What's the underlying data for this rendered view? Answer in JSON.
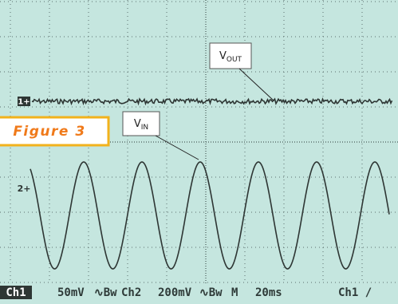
{
  "figure_label": "Figure 3",
  "annotations": {
    "v_out": {
      "main": "V",
      "sub": "OUT"
    },
    "v_in": {
      "main": "V",
      "sub": "IN"
    }
  },
  "markers": {
    "ch1": "1+",
    "ch2": "2+"
  },
  "status": {
    "ch1_label": "Ch1",
    "ch1_scale": "50mV",
    "ch1_bw": "∿Bw",
    "ch2_label": "Ch2",
    "ch2_scale": "200mV",
    "ch2_bw": "∿Bw",
    "timebase_label": "M",
    "timebase": "20ms",
    "trigger": "Ch1 /"
  }
}
